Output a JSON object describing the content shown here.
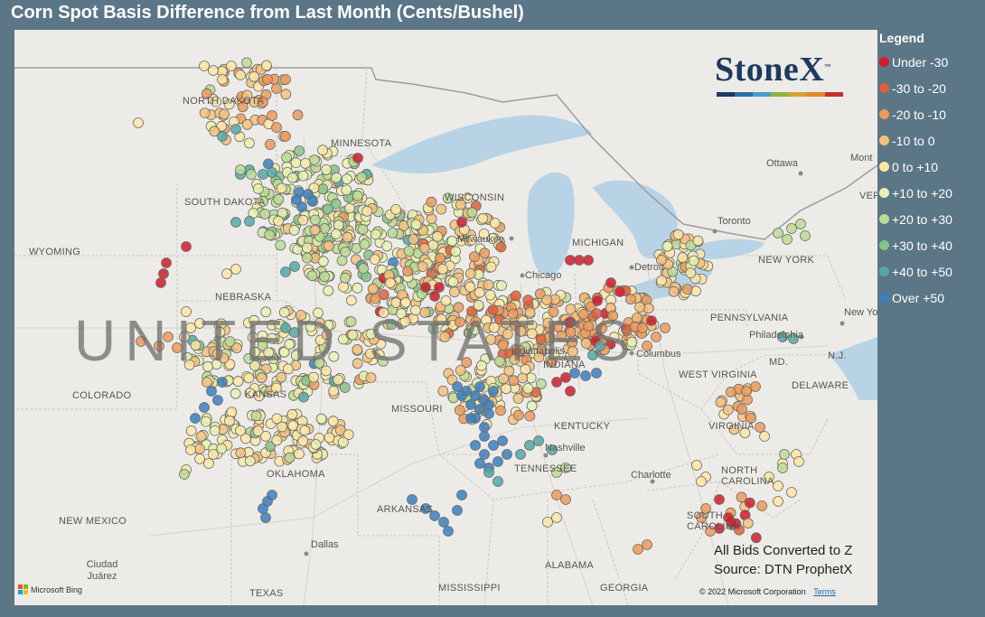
{
  "title": "Corn Spot Basis Difference from Last Month (Cents/Bushel)",
  "legend": {
    "title": "Legend",
    "items": [
      {
        "label": "Under -30",
        "color": "#d01c2c"
      },
      {
        "label": "-30 to -20",
        "color": "#e0603a"
      },
      {
        "label": "-20 to -10",
        "color": "#ee9a5a"
      },
      {
        "label": "-10 to 0",
        "color": "#f4c27e"
      },
      {
        "label": "0 to +10",
        "color": "#fbe8a6"
      },
      {
        "label": "+10 to +20",
        "color": "#e9f2b0"
      },
      {
        "label": "+20 to +30",
        "color": "#bcdc94"
      },
      {
        "label": "+30 to +40",
        "color": "#86c48a"
      },
      {
        "label": "+40 to +50",
        "color": "#52a9a6"
      },
      {
        "label": "Over +50",
        "color": "#3a7fbe"
      }
    ]
  },
  "logo": {
    "text": "StoneX",
    "tm": "™",
    "bar_colors": [
      "#1d3a5f",
      "#2d6fa3",
      "#4a9bc9",
      "#8fb33a",
      "#d7a32c",
      "#e08a2a",
      "#c4302b"
    ]
  },
  "notes": {
    "line1": "All Bids Converted to Z",
    "line2": "Source: DTN ProphetX"
  },
  "map": {
    "provider": "Microsoft Bing",
    "copyright": "© 2022 Microsoft Corporation",
    "terms": "Terms",
    "country_label": "UNITED STATES",
    "state_labels": [
      "NORTH DAKOTA",
      "MINNESOTA",
      "SOUTH DAKOTA",
      "WISCONSIN",
      "MICHIGAN",
      "WYOMING",
      "NEBRASKA",
      "NEW YORK",
      "PENNSYLVANIA",
      "COLORADO",
      "KANSAS",
      "MISSOURI",
      "INDIANA",
      "WEST VIRGINIA",
      "VIRGINIA",
      "DELAWARE",
      "KENTUCKY",
      "TENNESSEE",
      "OKLAHOMA",
      "ARKANSAS",
      "NORTH CAROLINA",
      "SOUTH CAROLINA",
      "NEW MEXICO",
      "TEXAS",
      "ALABAMA",
      "MISSISSIPPI",
      "GEORGIA",
      "MD.",
      "N.J.",
      "VERM"
    ],
    "city_labels": [
      "Ottawa",
      "Toronto",
      "Chicago",
      "Milwaukee",
      "Detroit",
      "Columbus",
      "Indianapolis",
      "Nashville",
      "Charlotte",
      "Dallas",
      "Ciudad Juárez",
      "Philadelphia",
      "New York",
      "Mont"
    ]
  }
}
